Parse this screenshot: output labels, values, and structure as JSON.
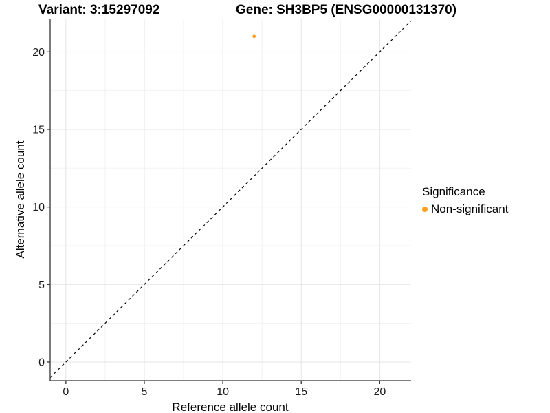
{
  "header": {
    "variant_title": "Variant: 3:15297092",
    "gene_title": "Gene: SH3BP5 (ENSG00000131370)"
  },
  "chart_data": {
    "type": "scatter",
    "xlabel": "Reference allele count",
    "ylabel": "Alternative allele count",
    "xlim": [
      -1,
      22
    ],
    "ylim": [
      -1.2,
      22.1
    ],
    "xticks": [
      0,
      5,
      10,
      15,
      20
    ],
    "yticks": [
      0,
      5,
      10,
      15,
      20
    ],
    "xticks_minor": [
      2.5,
      7.5,
      12.5,
      17.5
    ],
    "yticks_minor": [
      2.5,
      7.5,
      12.5,
      17.5
    ],
    "grid": "major+minor",
    "identity_line": {
      "type": "y=x",
      "style": "dashed",
      "color": "#000000",
      "from": -1,
      "to": 22
    },
    "series": [
      {
        "name": "Non-significant",
        "color": "#FF9E1B",
        "point_radius": 2.4,
        "points": [
          {
            "x": 12,
            "y": 21
          }
        ]
      }
    ],
    "legend": {
      "title": "Significance",
      "position": "right"
    },
    "style": {
      "background": "#FFFFFF",
      "axis_color": "#333333",
      "tick_color": "#333333",
      "tick_label_color": "#1a1a1a",
      "grid_major_color": "#E4E4E4",
      "grid_minor_color": "#F2F2F2"
    }
  }
}
